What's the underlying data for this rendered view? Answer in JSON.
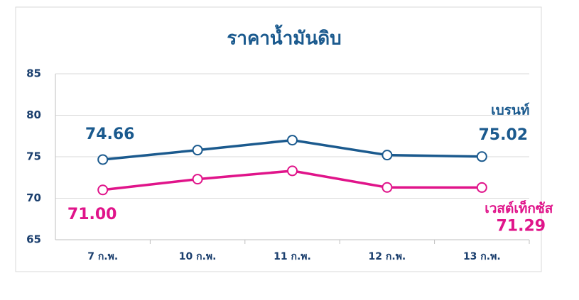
{
  "chart_data": {
    "type": "line",
    "title": "ราคาน้ำมันดิบ",
    "categories": [
      "7 ก.พ.",
      "10 ก.พ.",
      "11 ก.พ.",
      "12 ก.พ.",
      "13 ก.พ."
    ],
    "series": [
      {
        "name": "เบรนท์",
        "color": "#1b5a8e",
        "values": [
          74.66,
          75.8,
          77.0,
          75.2,
          75.02
        ],
        "value_labels": [
          "74.66",
          null,
          null,
          null,
          "75.02"
        ]
      },
      {
        "name": "เวสต์เท็กซัส",
        "color": "#e0148a",
        "values": [
          71.0,
          72.3,
          73.3,
          71.3,
          71.29
        ],
        "value_labels": [
          "71.00",
          null,
          null,
          null,
          "71.29"
        ]
      }
    ],
    "ylim": [
      65,
      85
    ],
    "yticks": [
      65,
      70,
      75,
      80,
      85
    ],
    "grid": true
  }
}
